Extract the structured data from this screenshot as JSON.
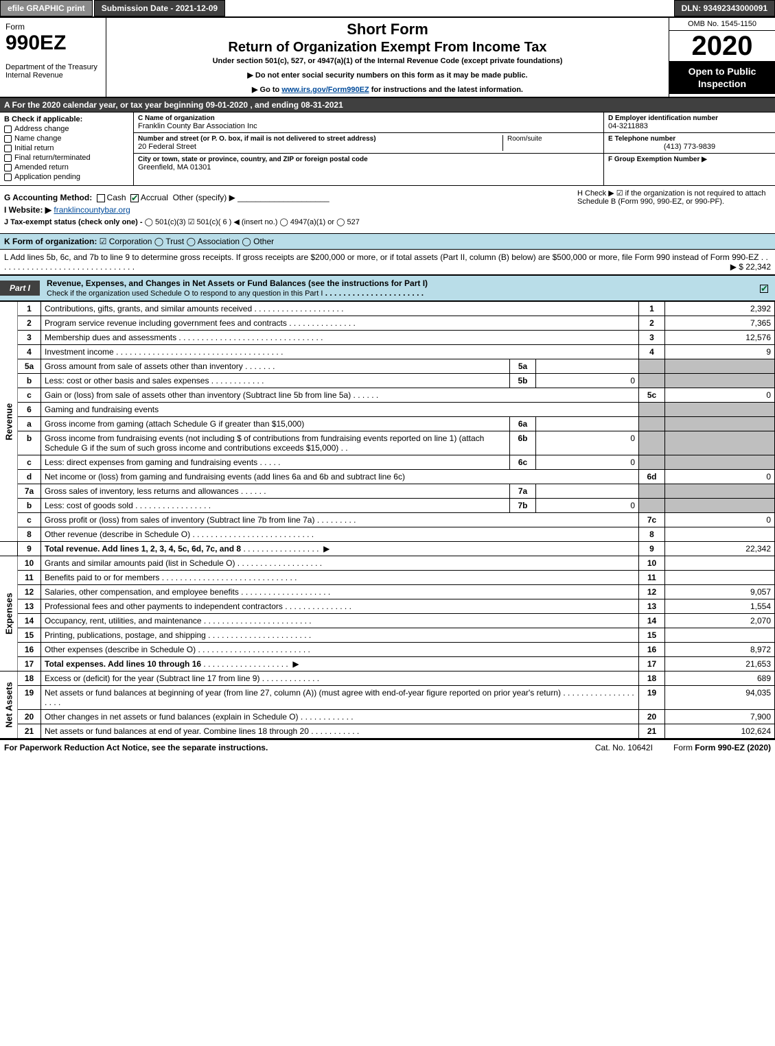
{
  "topbar": {
    "efile": "efile GRAPHIC print",
    "submission": "Submission Date - 2021-12-09",
    "dln": "DLN: 93492343000091"
  },
  "header": {
    "form_label": "Form",
    "form_num": "990EZ",
    "dept": "Department of the Treasury\nInternal Revenue",
    "title1": "Short Form",
    "title2": "Return of Organization Exempt From Income Tax",
    "sub": "Under section 501(c), 527, or 4947(a)(1) of the Internal Revenue Code (except private foundations)",
    "note1": "▶ Do not enter social security numbers on this form as it may be made public.",
    "note2_pre": "▶ Go to ",
    "note2_link": "www.irs.gov/Form990EZ",
    "note2_post": " for instructions and the latest information.",
    "omb": "OMB No. 1545-1150",
    "year": "2020",
    "open": "Open to Public Inspection"
  },
  "taxyear": "A For the 2020 calendar year, or tax year beginning 09-01-2020 , and ending 08-31-2021",
  "boxB": {
    "label": "B  Check if applicable:",
    "items": [
      "Address change",
      "Name change",
      "Initial return",
      "Final return/terminated",
      "Amended return",
      "Application pending"
    ]
  },
  "boxC": {
    "name_label": "C Name of organization",
    "name": "Franklin County Bar Association Inc",
    "street_label": "Number and street (or P. O. box, if mail is not delivered to street address)",
    "street": "20 Federal Street",
    "room_label": "Room/suite",
    "city_label": "City or town, state or province, country, and ZIP or foreign postal code",
    "city": "Greenfield, MA  01301"
  },
  "boxD": {
    "label": "D Employer identification number",
    "value": "04-3211883"
  },
  "boxE": {
    "label": "E Telephone number",
    "value": "(413) 773-9839"
  },
  "boxF": {
    "label": "F Group Exemption Number  ▶",
    "value": ""
  },
  "meta": {
    "g_label": "G Accounting Method:",
    "g_cash": "Cash",
    "g_accrual": "Accrual",
    "g_other": "Other (specify) ▶",
    "h_text": "H  Check ▶ ☑ if the organization is not required to attach Schedule B (Form 990, 990-EZ, or 990-PF).",
    "i_label": "I Website: ▶",
    "i_value": "franklincountybar.org",
    "j_label": "J Tax-exempt status (check only one) -",
    "j_opts": "◯ 501(c)(3)  ☑ 501(c)( 6 ) ◀ (insert no.)  ◯ 4947(a)(1) or  ◯ 527"
  },
  "k": {
    "label": "K Form of organization:",
    "opts": "☑ Corporation   ◯ Trust   ◯ Association   ◯ Other"
  },
  "l": {
    "text": "L Add lines 5b, 6c, and 7b to line 9 to determine gross receipts. If gross receipts are $200,000 or more, or if total assets (Part II, column (B) below) are $500,000 or more, file Form 990 instead of Form 990-EZ",
    "amount": "▶ $ 22,342"
  },
  "part1": {
    "tag": "Part I",
    "title": "Revenue, Expenses, and Changes in Net Assets or Fund Balances (see the instructions for Part I)",
    "sub": "Check if the organization used Schedule O to respond to any question in this Part I"
  },
  "sides": {
    "revenue": "Revenue",
    "expenses": "Expenses",
    "net": "Net Assets"
  },
  "rows": {
    "r1": {
      "n": "1",
      "d": "Contributions, gifts, grants, and similar amounts received",
      "box": "1",
      "v": "2,392"
    },
    "r2": {
      "n": "2",
      "d": "Program service revenue including government fees and contracts",
      "box": "2",
      "v": "7,365"
    },
    "r3": {
      "n": "3",
      "d": "Membership dues and assessments",
      "box": "3",
      "v": "12,576"
    },
    "r4": {
      "n": "4",
      "d": "Investment income",
      "box": "4",
      "v": "9"
    },
    "r5a": {
      "n": "5a",
      "d": "Gross amount from sale of assets other than inventory",
      "sub": "5a",
      "sv": ""
    },
    "r5b": {
      "n": "b",
      "d": "Less: cost or other basis and sales expenses",
      "sub": "5b",
      "sv": "0"
    },
    "r5c": {
      "n": "c",
      "d": "Gain or (loss) from sale of assets other than inventory (Subtract line 5b from line 5a)",
      "box": "5c",
      "v": "0"
    },
    "r6": {
      "n": "6",
      "d": "Gaming and fundraising events"
    },
    "r6a": {
      "n": "a",
      "d": "Gross income from gaming (attach Schedule G if greater than $15,000)",
      "sub": "6a",
      "sv": ""
    },
    "r6b": {
      "n": "b",
      "d": "Gross income from fundraising events (not including $              of contributions from fundraising events reported on line 1) (attach Schedule G if the sum of such gross income and contributions exceeds $15,000)",
      "sub": "6b",
      "sv": "0"
    },
    "r6c": {
      "n": "c",
      "d": "Less: direct expenses from gaming and fundraising events",
      "sub": "6c",
      "sv": "0"
    },
    "r6d": {
      "n": "d",
      "d": "Net income or (loss) from gaming and fundraising events (add lines 6a and 6b and subtract line 6c)",
      "box": "6d",
      "v": "0"
    },
    "r7a": {
      "n": "7a",
      "d": "Gross sales of inventory, less returns and allowances",
      "sub": "7a",
      "sv": ""
    },
    "r7b": {
      "n": "b",
      "d": "Less: cost of goods sold",
      "sub": "7b",
      "sv": "0"
    },
    "r7c": {
      "n": "c",
      "d": "Gross profit or (loss) from sales of inventory (Subtract line 7b from line 7a)",
      "box": "7c",
      "v": "0"
    },
    "r8": {
      "n": "8",
      "d": "Other revenue (describe in Schedule O)",
      "box": "8",
      "v": ""
    },
    "r9": {
      "n": "9",
      "d": "Total revenue. Add lines 1, 2, 3, 4, 5c, 6d, 7c, and 8",
      "box": "9",
      "v": "22,342"
    },
    "r10": {
      "n": "10",
      "d": "Grants and similar amounts paid (list in Schedule O)",
      "box": "10",
      "v": ""
    },
    "r11": {
      "n": "11",
      "d": "Benefits paid to or for members",
      "box": "11",
      "v": ""
    },
    "r12": {
      "n": "12",
      "d": "Salaries, other compensation, and employee benefits",
      "box": "12",
      "v": "9,057"
    },
    "r13": {
      "n": "13",
      "d": "Professional fees and other payments to independent contractors",
      "box": "13",
      "v": "1,554"
    },
    "r14": {
      "n": "14",
      "d": "Occupancy, rent, utilities, and maintenance",
      "box": "14",
      "v": "2,070"
    },
    "r15": {
      "n": "15",
      "d": "Printing, publications, postage, and shipping",
      "box": "15",
      "v": ""
    },
    "r16": {
      "n": "16",
      "d": "Other expenses (describe in Schedule O)",
      "box": "16",
      "v": "8,972"
    },
    "r17": {
      "n": "17",
      "d": "Total expenses. Add lines 10 through 16",
      "box": "17",
      "v": "21,653"
    },
    "r18": {
      "n": "18",
      "d": "Excess or (deficit) for the year (Subtract line 17 from line 9)",
      "box": "18",
      "v": "689"
    },
    "r19": {
      "n": "19",
      "d": "Net assets or fund balances at beginning of year (from line 27, column (A)) (must agree with end-of-year figure reported on prior year's return)",
      "box": "19",
      "v": "94,035"
    },
    "r20": {
      "n": "20",
      "d": "Other changes in net assets or fund balances (explain in Schedule O)",
      "box": "20",
      "v": "7,900"
    },
    "r21": {
      "n": "21",
      "d": "Net assets or fund balances at end of year. Combine lines 18 through 20",
      "box": "21",
      "v": "102,624"
    }
  },
  "footer": {
    "left": "For Paperwork Reduction Act Notice, see the separate instructions.",
    "mid": "Cat. No. 10642I",
    "right": "Form 990-EZ (2020)"
  },
  "colors": {
    "bar_dark": "#404040",
    "bar_light": "#8a8a8a",
    "part_bg": "#b9dde8",
    "grey_cell": "#bfbfbf",
    "link": "#004b9b",
    "check": "#006b2d"
  }
}
